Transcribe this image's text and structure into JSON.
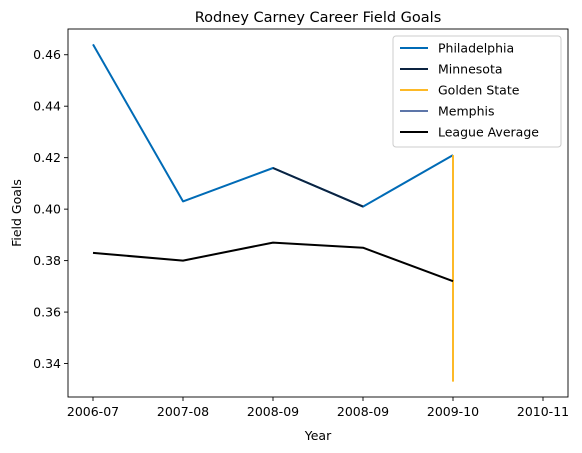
{
  "chart_data": {
    "type": "line",
    "title": "Rodney Carney Career Field Goals",
    "xlabel": "Year",
    "ylabel": "Field Goals",
    "x_ticks": [
      "2006-07",
      "2007-08",
      "2008-09",
      "2008-09",
      "2009-10",
      "2010-11"
    ],
    "x_range": [
      0,
      5
    ],
    "ylim": [
      0.327,
      0.47
    ],
    "y_ticks": [
      0.34,
      0.36,
      0.38,
      0.4,
      0.42,
      0.44,
      0.46
    ],
    "grid": false,
    "legend_position": "top-right",
    "series": [
      {
        "name": "Philadelphia",
        "color": "#006bb6",
        "x": [
          0,
          1,
          2,
          3,
          4
        ],
        "y": [
          0.464,
          0.403,
          0.416,
          0.401,
          0.421
        ]
      },
      {
        "name": "Minnesota",
        "color": "#0c2340",
        "x": [
          2,
          3
        ],
        "y": [
          0.416,
          0.401
        ]
      },
      {
        "name": "Golden State",
        "color": "#fdb927",
        "x": [
          4,
          4
        ],
        "y": [
          0.421,
          0.333
        ]
      },
      {
        "name": "Memphis",
        "color": "#5d76a9",
        "x": [],
        "y": []
      },
      {
        "name": "League Average",
        "color": "#000000",
        "x": [
          0,
          1,
          2,
          3,
          4
        ],
        "y": [
          0.383,
          0.38,
          0.387,
          0.385,
          0.372
        ]
      }
    ]
  }
}
